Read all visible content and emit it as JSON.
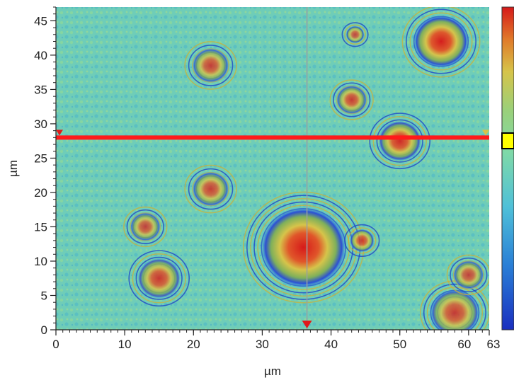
{
  "chart_data": {
    "type": "heatmap",
    "title": "",
    "xlabel": "µm",
    "ylabel": "µm",
    "xlim": [
      0,
      63
    ],
    "ylim": [
      0,
      47
    ],
    "x_ticks": [
      0,
      10,
      20,
      30,
      40,
      50,
      60,
      63
    ],
    "x_tick_labels": [
      "0",
      "10",
      "20",
      "30",
      "40",
      "50",
      "60",
      "63"
    ],
    "y_ticks": [
      0,
      5,
      10,
      15,
      20,
      25,
      30,
      35,
      40,
      45
    ],
    "y_tick_labels": [
      "0",
      "5",
      "10",
      "15",
      "20",
      "25",
      "30",
      "35",
      "40",
      "45"
    ],
    "colormap": [
      "#1a2fbf",
      "#2a7fd6",
      "#4fc0d8",
      "#7fd9a8",
      "#9ad07a",
      "#d6c44a",
      "#e07a2a",
      "#d61a1a"
    ],
    "profile_line_y": 28,
    "profile_line_color": "#ff1a1a",
    "vertical_cursor_x": 36.5,
    "cursor_marker_color": "#e01a1a",
    "colorbar_marker_color": "#ffff00",
    "features": [
      {
        "kind": "peak",
        "x": 36,
        "y": 12,
        "r": 7,
        "level": 1.0
      },
      {
        "kind": "peak",
        "x": 56,
        "y": 42,
        "r": 4.5,
        "level": 0.95
      },
      {
        "kind": "peak",
        "x": 50,
        "y": 27.5,
        "r": 3.5,
        "level": 0.8
      },
      {
        "kind": "peak",
        "x": 15,
        "y": 7.5,
        "r": 3.5,
        "level": 0.65
      },
      {
        "kind": "peak",
        "x": 22.5,
        "y": 20.5,
        "r": 3,
        "level": 0.55
      },
      {
        "kind": "peak",
        "x": 22.5,
        "y": 38.5,
        "r": 3,
        "level": 0.55
      },
      {
        "kind": "peak",
        "x": 13,
        "y": 15,
        "r": 2.5,
        "level": 0.5
      },
      {
        "kind": "peak",
        "x": 43,
        "y": 33.5,
        "r": 2.5,
        "level": 0.6
      },
      {
        "kind": "peak",
        "x": 58,
        "y": 2.5,
        "r": 4,
        "level": 0.6
      },
      {
        "kind": "peak",
        "x": 60,
        "y": 8,
        "r": 2.5,
        "level": 0.5
      },
      {
        "kind": "peak",
        "x": 44.5,
        "y": 13,
        "r": 2,
        "level": 0.6
      },
      {
        "kind": "peak",
        "x": 43.5,
        "y": 43,
        "r": 1.5,
        "level": 0.45
      }
    ]
  }
}
